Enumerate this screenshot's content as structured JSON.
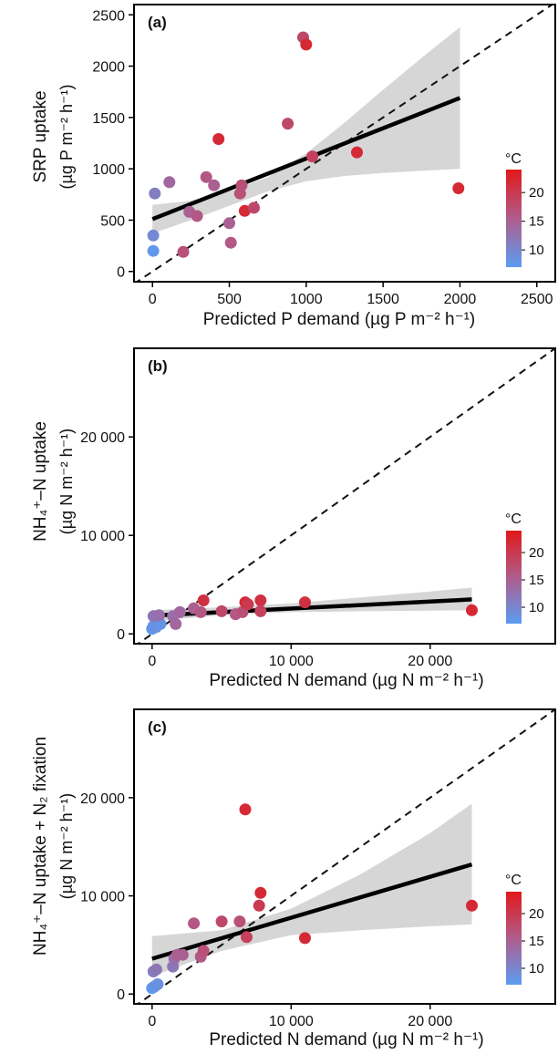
{
  "colorbar": {
    "unit": "°C",
    "ticks": [
      10,
      15,
      20
    ],
    "range": [
      7,
      24
    ],
    "color_low": "#5b9cf2",
    "color_mid": "#b05c8c",
    "color_high": "#e0191a"
  },
  "chart_data": [
    {
      "type": "scatter",
      "panel_label": "(a)",
      "xlabel": "Predicted P demand (µg P m⁻² h⁻¹)",
      "ylabel_line1": "SRP uptake",
      "ylabel_line2": "(µg P m⁻² h⁻¹)",
      "xlim": [
        -120,
        2620
      ],
      "ylim": [
        -100,
        2600
      ],
      "xticks": [
        0,
        500,
        1000,
        1500,
        2000,
        2500
      ],
      "xtick_labels": [
        "0",
        "500",
        "1000",
        "1500",
        "2000",
        "2500"
      ],
      "yticks": [
        0,
        500,
        1000,
        1500,
        2000,
        2500
      ],
      "ytick_labels": [
        "0",
        "500",
        "1000",
        "1500",
        "2000",
        "2500"
      ],
      "one_to_one_line": true,
      "fit_line": {
        "x": [
          0,
          2000
        ],
        "y": [
          510,
          1690
        ]
      },
      "confidence_band": {
        "x": [
          0,
          250,
          500,
          750,
          1000,
          1250,
          1500,
          1750,
          2000
        ],
        "lower": [
          370,
          500,
          640,
          780,
          880,
          930,
          960,
          980,
          1000
        ],
        "upper": [
          650,
          690,
          780,
          920,
          1150,
          1450,
          1770,
          2080,
          2380
        ]
      },
      "points": [
        {
          "x": 5,
          "y": 200,
          "temp": 7.5
        },
        {
          "x": 5,
          "y": 350,
          "temp": 9.5
        },
        {
          "x": 15,
          "y": 760,
          "temp": 11
        },
        {
          "x": 110,
          "y": 870,
          "temp": 14
        },
        {
          "x": 200,
          "y": 190,
          "temp": 17
        },
        {
          "x": 240,
          "y": 580,
          "temp": 15
        },
        {
          "x": 290,
          "y": 540,
          "temp": 16
        },
        {
          "x": 350,
          "y": 920,
          "temp": 16
        },
        {
          "x": 400,
          "y": 840,
          "temp": 15
        },
        {
          "x": 430,
          "y": 1290,
          "temp": 22
        },
        {
          "x": 500,
          "y": 470,
          "temp": 15
        },
        {
          "x": 510,
          "y": 280,
          "temp": 16
        },
        {
          "x": 570,
          "y": 760,
          "temp": 17
        },
        {
          "x": 580,
          "y": 840,
          "temp": 17
        },
        {
          "x": 600,
          "y": 590,
          "temp": 22
        },
        {
          "x": 660,
          "y": 620,
          "temp": 18
        },
        {
          "x": 880,
          "y": 1440,
          "temp": 18
        },
        {
          "x": 980,
          "y": 2280,
          "temp": 18
        },
        {
          "x": 1000,
          "y": 2210,
          "temp": 22
        },
        {
          "x": 1040,
          "y": 1120,
          "temp": 19
        },
        {
          "x": 1330,
          "y": 1160,
          "temp": 22
        },
        {
          "x": 1990,
          "y": 810,
          "temp": 22
        }
      ]
    },
    {
      "type": "scatter",
      "panel_label": "(b)",
      "xlabel": "Predicted N demand (µg N m⁻² h⁻¹)",
      "ylabel_line1": "NH₄⁺–N uptake",
      "ylabel_line2": "(µg N m⁻² h⁻¹)",
      "xlim": [
        -1300,
        29000
      ],
      "ylim": [
        -1000,
        29000
      ],
      "xticks": [
        0,
        10000,
        20000
      ],
      "xtick_labels": [
        "0",
        "10 000",
        "20 000"
      ],
      "yticks": [
        0,
        10000,
        20000
      ],
      "ytick_labels": [
        "0",
        "10 000",
        "20 000"
      ],
      "one_to_one_line": true,
      "fit_line": {
        "x": [
          0,
          23000
        ],
        "y": [
          1850,
          3500
        ]
      },
      "confidence_band": {
        "x": [
          0,
          5000,
          10000,
          15000,
          20000,
          23000
        ],
        "lower": [
          1300,
          1900,
          2200,
          2300,
          2350,
          2400
        ],
        "upper": [
          2400,
          2700,
          3100,
          3700,
          4300,
          4700
        ]
      },
      "points": [
        {
          "x": 0,
          "y": 500,
          "temp": 7.5
        },
        {
          "x": 100,
          "y": 800,
          "temp": 8
        },
        {
          "x": 300,
          "y": 700,
          "temp": 8.5
        },
        {
          "x": 600,
          "y": 1000,
          "temp": 8
        },
        {
          "x": 100,
          "y": 1800,
          "temp": 12
        },
        {
          "x": 500,
          "y": 1900,
          "temp": 13
        },
        {
          "x": 1500,
          "y": 1800,
          "temp": 13
        },
        {
          "x": 1700,
          "y": 1000,
          "temp": 14
        },
        {
          "x": 2000,
          "y": 2200,
          "temp": 14
        },
        {
          "x": 3000,
          "y": 2600,
          "temp": 15
        },
        {
          "x": 3500,
          "y": 2200,
          "temp": 16
        },
        {
          "x": 3700,
          "y": 3400,
          "temp": 21
        },
        {
          "x": 5000,
          "y": 2300,
          "temp": 18
        },
        {
          "x": 6000,
          "y": 2000,
          "temp": 16
        },
        {
          "x": 6500,
          "y": 2200,
          "temp": 17
        },
        {
          "x": 6700,
          "y": 3200,
          "temp": 22
        },
        {
          "x": 6900,
          "y": 3000,
          "temp": 20
        },
        {
          "x": 7800,
          "y": 3400,
          "temp": 21
        },
        {
          "x": 7800,
          "y": 2300,
          "temp": 19
        },
        {
          "x": 11000,
          "y": 3200,
          "temp": 21
        },
        {
          "x": 23000,
          "y": 2400,
          "temp": 22
        }
      ]
    },
    {
      "type": "scatter",
      "panel_label": "(c)",
      "xlabel": "Predicted N demand (µg N m⁻² h⁻¹)",
      "ylabel_line1": "NH₄⁺–N uptake + N₂ fixation",
      "ylabel_line2": "(µg N m⁻² h⁻¹)",
      "xlim": [
        -1300,
        29000
      ],
      "ylim": [
        -1000,
        29000
      ],
      "xticks": [
        0,
        10000,
        20000
      ],
      "xtick_labels": [
        "0",
        "10 000",
        "20 000"
      ],
      "yticks": [
        0,
        10000,
        20000
      ],
      "ytick_labels": [
        "0",
        "10 000",
        "20 000"
      ],
      "one_to_one_line": true,
      "fit_line": {
        "x": [
          0,
          23000
        ],
        "y": [
          3600,
          13200
        ]
      },
      "confidence_band": {
        "x": [
          0,
          5000,
          10000,
          15000,
          20000,
          23000
        ],
        "lower": [
          1800,
          4400,
          6000,
          6500,
          6900,
          7100
        ],
        "upper": [
          5900,
          6500,
          8700,
          12200,
          16400,
          19400
        ]
      },
      "points": [
        {
          "x": 0,
          "y": 600,
          "temp": 7.5
        },
        {
          "x": 200,
          "y": 800,
          "temp": 8
        },
        {
          "x": 400,
          "y": 1000,
          "temp": 8.5
        },
        {
          "x": 100,
          "y": 2300,
          "temp": 11
        },
        {
          "x": 300,
          "y": 2500,
          "temp": 12
        },
        {
          "x": 1500,
          "y": 2800,
          "temp": 12
        },
        {
          "x": 1600,
          "y": 3600,
          "temp": 13
        },
        {
          "x": 1800,
          "y": 4000,
          "temp": 15
        },
        {
          "x": 2200,
          "y": 4000,
          "temp": 15
        },
        {
          "x": 3000,
          "y": 7200,
          "temp": 16
        },
        {
          "x": 3500,
          "y": 3800,
          "temp": 16
        },
        {
          "x": 3700,
          "y": 4400,
          "temp": 17
        },
        {
          "x": 5000,
          "y": 7400,
          "temp": 18
        },
        {
          "x": 6300,
          "y": 7400,
          "temp": 17
        },
        {
          "x": 6700,
          "y": 18800,
          "temp": 22
        },
        {
          "x": 6800,
          "y": 5800,
          "temp": 19
        },
        {
          "x": 7800,
          "y": 10300,
          "temp": 22
        },
        {
          "x": 7700,
          "y": 9000,
          "temp": 20
        },
        {
          "x": 11000,
          "y": 5700,
          "temp": 22
        },
        {
          "x": 23000,
          "y": 9000,
          "temp": 22
        }
      ]
    }
  ]
}
